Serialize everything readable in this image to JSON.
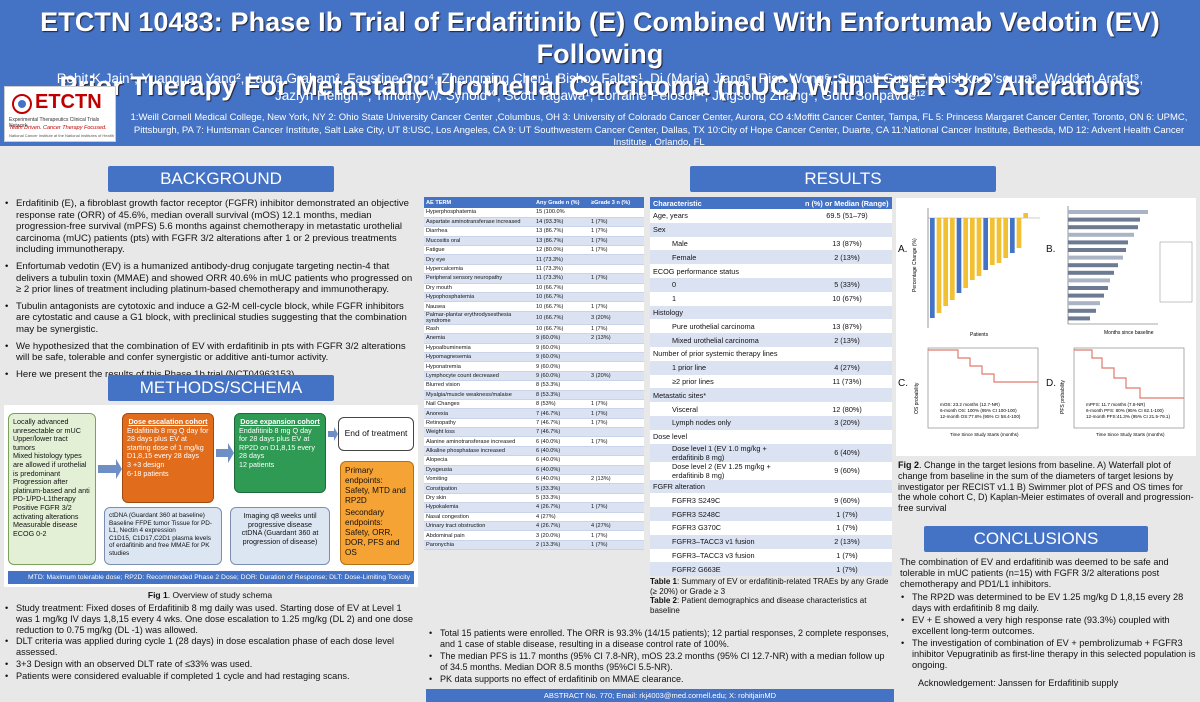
{
  "header": {
    "title_line1": "ETCTN 10483: Phase Ib Trial of Erdafitinib (E) Combined With Enfortumab Vedotin (EV) Following",
    "title_line2": "Prior Therapy For Metastatic Urothelial Carcinoma (mUC) With FGFR 3/2 Alterations",
    "authors_line1": "Rohit K Jain¹, Yuanquan Yang², Laura Graham³, Faustine Ong⁴, Zhengming Chen¹, Bishoy Faltas¹, Di (Maria) Jiang⁵, Risa Wong⁶, Sumati Gupta⁷, Anishka D'souza⁸, Waddah Arafat⁹,",
    "authors_line2": "Jazlyn Heiligh⁴ , Timothy W. Synold¹⁰, Scott Tagawa¹, Lorraine Pelosof¹¹, Jingsong Zhang⁴, Guru Sonpavde¹²",
    "affiliations": "1:Weill Cornell Medical College, New York, NY 2: Ohio State University Cancer Center ,Columbus, OH 3: University of Colorado Cancer Center, Aurora, CO 4:Moffitt Cancer Center, Tampa, FL 5: Princess Margaret Cancer Center, Toronto, ON 6: UPMC, Pittsburgh, PA 7: Huntsman Cancer Institute, Salt Lake City, UT 8:USC, Los Angeles, CA 9: UT Southwestern Cancer Center, Dallas, TX 10:City of Hope Cancer Center, Duarte, CA 11:National Cancer Institute, Bethesda, MD 12: Advent Health Cancer Institute , Orlando, FL",
    "logo_text": "ETCTN",
    "logo_sub": "Experimental Therapeutics Clinical Trials Network",
    "logo_tag": "Team Driven. Cancer Therapy Focused.",
    "logo_nci": "National Cancer Institute at the National Institutes of Health"
  },
  "background": {
    "heading": "BACKGROUND",
    "bullets": [
      "Erdafitinib (E), a fibroblast growth factor receptor (FGFR) inhibitor demonstrated an objective response rate (ORR) of 45.6%, median overall survival (mOS) 12.1 months, median progression-free survival (mPFS) 5.6 months against chemotherapy in metastatic urothelial carcinoma (mUC) patients (pts) with FGFR 3/2 alterations after 1 or 2 previous treatments including immunotherapy.",
      "Enfortumab vedotin (EV) is a humanized antibody-drug conjugate targeting nectin-4 that delivers a tubulin toxin (MMAE) and showed ORR 40.6% in mUC patients who progressed on ≥ 2 prior lines of treatment including platinum-based chemotherapy and immunotherapy.",
      "Tubulin antagonists are cytotoxic and induce a G2-M cell-cycle block, while FGFR inhibitors are cytostatic and cause a G1 block, with preclinical studies suggesting that the combination may be synergistic.",
      "We hypothesized that the combination of EV with erdafitinib in pts with FGFR 3/2 alterations will be safe, tolerable and confer synergistic or additive anti-tumor activity.",
      "Here we present the results of this Phase 1b trial (NCT04963153)."
    ]
  },
  "methods": {
    "heading": "METHODS/SCHEMA",
    "eligibility": [
      "Locally advanced unresectable or mUC",
      "Upper/lower tract tumors",
      "Mixed histology types are allowed if urothelial is predominant",
      "Progression after platinum-based and anti PD-1/PD-L1therapy",
      "Positive FGFR 3/2 activating alterations",
      "Measurable disease",
      "ECOG 0-2"
    ],
    "dose_esc_title": "Dose escalation cohort",
    "dose_esc_items": [
      "Erdafitinib 8 mg Q day for 28 days plus EV at starting dose of 1 mg/kg D1,8,15 every 28 days",
      "3 +3 design",
      "6-18 patients"
    ],
    "dose_exp_title": "Dose expansion cohort",
    "dose_exp_items": [
      "Endafitinib 8 mg Q day for 28 days plus EV at RP2D on D1,8,15 every 28 days",
      "12 patients"
    ],
    "end_label": "End of treatment",
    "endpoints": [
      "Primary endpoints: Safety, MTD and RP2D",
      "Secondary endpoints: Safety, ORR, DOR, PFS and OS"
    ],
    "ctdna_items": [
      "ctDNA (Guardant 360 at baseline)",
      "Baseline FFPE tumor Tissue for PD-L1, Nectin 4 expression",
      "C1D15, C1D17,C2D1 plasma levels of erdafitinib and free MMAE for PK studies"
    ],
    "imaging_items": [
      "Imaging q8 weeks until progressive disease",
      "ctDNA (Guardant 360 at progression of disease)"
    ],
    "abbrev": "MTD: Maximum tolerable dose; RP2D: Recommended Phase 2 Dose; DOR: Duration of Response; DLT: Dose-Limiting Toxicity",
    "fig_caption_bold": "Fig 1",
    "fig_caption": ". Overview of study schema",
    "notes": [
      "Study treatment: Fixed doses of Erdafitinib 8 mg daily was used.  Starting dose of EV at Level 1 was 1 mg/kg IV days 1,8,15 every 4 wks. One dose escalation to 1.25 mg/kg (DL 2) and one dose reduction to 0.75 mg/kg (DL -1) was allowed.",
      "DLT criteria was applied during cycle 1 (28 days) in dose escalation phase of each dose level assessed.",
      "3+3 Design with an observed DLT rate of ≤33% was used.",
      "Patients were considered evaluable if completed 1 cycle and had restaging scans."
    ]
  },
  "results": {
    "heading": "RESULTS",
    "ae_headers": [
      "AE TERM",
      "Any Grade n (%)",
      "≥Grade 3 n (%)"
    ],
    "ae_rows": [
      [
        "Hyperphosphatemia",
        "15 (100.0%",
        ""
      ],
      [
        "Aspartate aminotransferase increased",
        "14 (93.3%)",
        "1 (7%)"
      ],
      [
        "Diarrhea",
        "13 (86.7%)",
        "1 (7%)"
      ],
      [
        "Mucositis oral",
        "13 (86.7%)",
        "1 (7%)"
      ],
      [
        "Fatigue",
        "12 (80.0%)",
        "1 (7%)"
      ],
      [
        "Dry eye",
        "11 (73.3%)",
        ""
      ],
      [
        "Hypercalcemia",
        "11 (73.3%)",
        ""
      ],
      [
        "Peripheral sensory neuropathy",
        "11 (73.3%)",
        "1 (7%)"
      ],
      [
        "Dry mouth",
        "10 (66.7%)",
        ""
      ],
      [
        "Hypophosphatemia",
        "10 (66.7%)",
        ""
      ],
      [
        "Nausea",
        "10 (66.7%)",
        "1 (7%)"
      ],
      [
        "Palmar-plantar erythrodysesthesia syndrome",
        "10 (66.7%)",
        "3 (20%)"
      ],
      [
        "Rash",
        "10 (66.7%)",
        "1 (7%)"
      ],
      [
        "Anemia",
        "9 (60.0%)",
        "2 (13%)"
      ],
      [
        "Hypoalbuminemia",
        "9 (60.0%)",
        ""
      ],
      [
        "Hypomagnesemia",
        "9 (60.0%)",
        ""
      ],
      [
        "Hyponatremia",
        "9 (60.0%)",
        ""
      ],
      [
        "Lymphocyte count decreased",
        "9 (60.0%)",
        "3 (20%)"
      ],
      [
        "Blurred vision",
        "8 (53.3%)",
        ""
      ],
      [
        "Myalgia/muscle weakness/malaise",
        "8 (53.3%)",
        ""
      ],
      [
        "Nail Changes",
        "8 (53%)",
        "1 (7%)"
      ],
      [
        "Anorexia",
        "7 (46.7%)",
        "1 (7%)"
      ],
      [
        "Retinopathy",
        "7 (46.7%)",
        "1 (7%)"
      ],
      [
        "Weight loss",
        "7 (46.7%)",
        ""
      ],
      [
        "Alanine aminotransferase increased",
        "6 (40.0%)",
        "1 (7%)"
      ],
      [
        "Alkaline phosphatase increased",
        "6 (40.0%)",
        ""
      ],
      [
        "Alopecia",
        "6 (40.0%)",
        ""
      ],
      [
        "Dysgeusia",
        "6 (40.0%)",
        ""
      ],
      [
        "Vomiting",
        "6 (40.0%)",
        "2 (13%)"
      ],
      [
        "Constipation",
        "5 (33.3%)",
        ""
      ],
      [
        "Dry skin",
        "5 (33.3%)",
        ""
      ],
      [
        "Hypokalemia",
        "4 (26.7%)",
        "1 (7%)"
      ],
      [
        "Nasal congestion",
        "4 (27%)",
        ""
      ],
      [
        "Urinary tract obstruction",
        "4 (26.7%)",
        "4 (27%)"
      ],
      [
        "Abdominal pain",
        "3 (20.0%)",
        "1 (7%)"
      ],
      [
        "Paronychia",
        "2 (13.3%)",
        "1 (7%)"
      ]
    ],
    "demo_headers": [
      "Characteristic",
      "n (%) or Median (Range)"
    ],
    "demo_rows": [
      [
        "Age, years",
        "69.5 (51–79)",
        0
      ],
      [
        "Sex",
        "",
        0
      ],
      [
        "Male",
        "13 (87%)",
        1
      ],
      [
        "Female",
        "2 (13%)",
        1
      ],
      [
        "ECOG performance status",
        "",
        0
      ],
      [
        "0",
        "5 (33%)",
        1
      ],
      [
        "1",
        "10 (67%)",
        1
      ],
      [
        "Histology",
        "",
        0
      ],
      [
        "Pure urothelial carcinoma",
        "13 (87%)",
        1
      ],
      [
        "Mixed urothelial carcinoma",
        "2 (13%)",
        1
      ],
      [
        "Number of prior systemic therapy lines",
        "",
        0
      ],
      [
        "1 prior line",
        "4 (27%)",
        1
      ],
      [
        "≥2 prior lines",
        "11 (73%)",
        1
      ],
      [
        "Metastatic sites*",
        "",
        0
      ],
      [
        "Visceral",
        "12 (80%)",
        1
      ],
      [
        "Lymph nodes only",
        "3 (20%)",
        1
      ],
      [
        "Dose level",
        "",
        0
      ],
      [
        "Dose level 1 (EV 1.0 mg/kg + erdafitinib 8 mg)",
        "6 (40%)",
        1
      ],
      [
        "Dose level 2 (EV 1.25 mg/kg + erdafitinib 8 mg)",
        "9 (60%)",
        1
      ],
      [
        "FGFR alteration",
        "",
        0
      ],
      [
        "FGFR3 S249C",
        "9 (60%)",
        1
      ],
      [
        "FGFR3 S248C",
        "1 (7%)",
        1
      ],
      [
        "FGFR3 G370C",
        "1 (7%)",
        1
      ],
      [
        "FGFR3–TACC3 v1 fusion",
        "2 (13%)",
        1
      ],
      [
        "FGFR3–TACC3 v3 fusion",
        "1 (7%)",
        1
      ],
      [
        "FGFR2 G663E",
        "1 (7%)",
        1
      ]
    ],
    "table_caption_1_bold": "Table 1",
    "table_caption_1": ": Summary of EV or erdafitinib-related TRAEs by any Grade (≥ 20%) or Grade ≥ 3",
    "table_caption_2_bold": "Table 2",
    "table_caption_2": ": Patient demographics and disease characteristics at baseline",
    "summary": [
      "Total 15 patients were enrolled. The ORR is 93.3% (14/15 patients); 12 partial responses, 2 complete responses, and 1 case of stable disease, resulting in a disease control rate of 100%.",
      "The median PFS is 11.7 months (95% CI 7.8-NR), mOS 23.2 months (95% CI 12.7-NR) with a median follow up of 34.5 months. Median DOR 8.5 months (95%CI 5.5-NR).",
      "PK data supports no effect of erdafitinib on MMAE clearance."
    ],
    "panel_labels": [
      "A.",
      "B.",
      "C.",
      "D."
    ],
    "fig2_bold": "Fig 2",
    "fig2_caption": ". Change in the target lesions from baseline. A) Waterfall plot of change from baseline in the sum of the diameters of target lesions by investigator per RECIST v1.1 B) Swimmer plot of PFS and OS times for the whole cohort C, D) Kaplan-Meier estimates of overall and progression-free survival",
    "km_c_text": [
      "mOS: 23.2 months (12.7-NR)",
      "6-month OS: 100% (95% CI 100-100)",
      "12-month OS:77.8% (95% CI 58.4-100)"
    ],
    "km_d_text": [
      "mPFS: 11.7 months (7.8-NR)",
      "6-month PFS: 80% (95% CI 62.1-100)",
      "12-month PFS:41.3% (95% CI 21.5-79.1)"
    ],
    "waterfall_ylabel": "Percentage Change (%)",
    "waterfall_xlabel": "Patients",
    "swimmer_xlabel": "Months since baseline",
    "km_c_ylabel": "OS probability",
    "km_d_ylabel": "PFS probability",
    "km_xlabel": "Time Since Study Starts (months)",
    "waterfall_values": [
      -100,
      -95,
      -88,
      -82,
      -75,
      -70,
      -62,
      -58,
      -52,
      -47,
      -45,
      -40,
      -35,
      -30,
      5
    ]
  },
  "conclusions": {
    "heading": "CONCLUSIONS",
    "intro": "The combination of EV and erdafitinib was deemed to be safe and tolerable in mUC patients (n=15) with FGFR 3/2 alterations post chemotherapy and PD1/L1 inhibitors.",
    "bullets": [
      "The RP2D was determined to be EV 1.25 mg/kg D 1,8,15 every 28 days with erdafitinib 8 mg daily.",
      "EV + E showed a very high response rate (93.3%) coupled with excellent long-term outcomes.",
      "The investigation of combination of EV + pembrolizumab + FGFR3 inhibitor Vepugratinib as first-line therapy in this selected population is ongoing."
    ],
    "ack": "Acknowledgement: Janssen for Erdafitinib supply"
  },
  "footer": {
    "abstract": "ABSTRACT No. 770; Email: rkj4003@med.cornell.edu; X: rohitjainMD"
  },
  "colors": {
    "header": "#4472c4",
    "dose_esc": "#e06c1c",
    "dose_exp": "#2e9a54",
    "eligibility": "#e3f0d6",
    "endpoints": "#f6a335"
  }
}
